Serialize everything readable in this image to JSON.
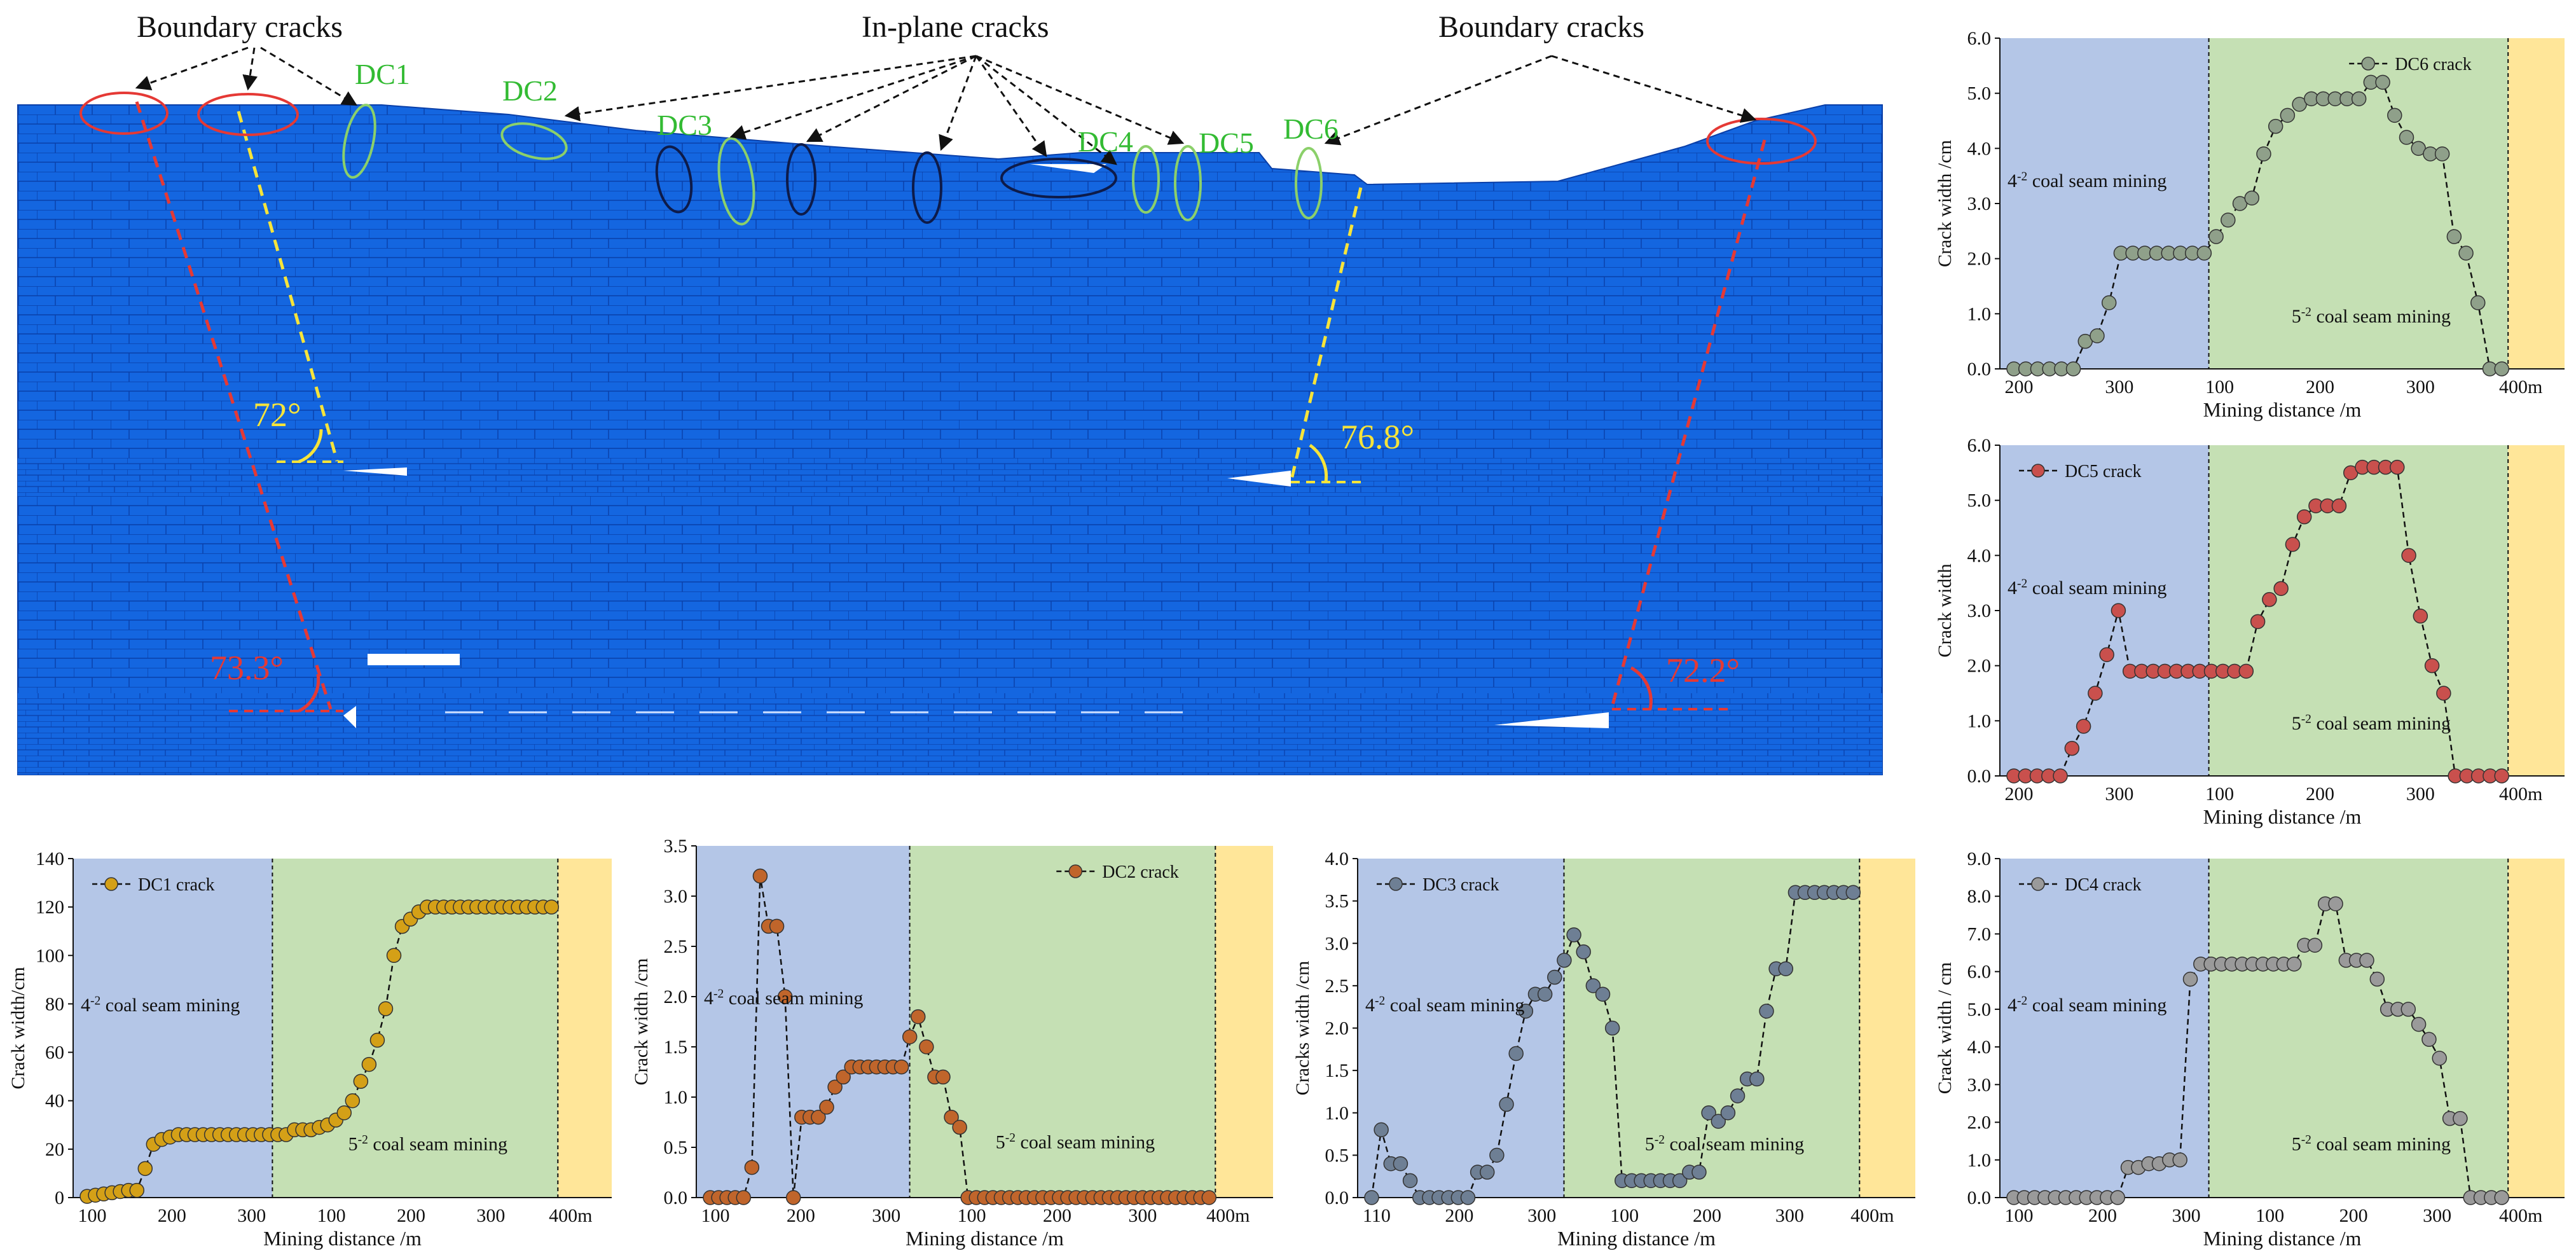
{
  "model": {
    "labels": {
      "boundary_left": "Boundary cracks",
      "boundary_right": "Boundary cracks",
      "inplane": "In-plane cracks",
      "dc1": "DC1",
      "dc2": "DC2",
      "dc3": "DC3",
      "dc4": "DC4",
      "dc5": "DC5",
      "dc6": "DC6",
      "angle_upper_left": "72°",
      "angle_upper_right": "76.8°",
      "angle_lower_left": "73.3°",
      "angle_lower_right": "72.2°"
    },
    "colors": {
      "rock": "#1565d8",
      "grid": "#0a3f9e",
      "green": "#33aa33",
      "red": "#e53935",
      "yellow": "#f6e43a",
      "navy": "#0d1b4a"
    }
  },
  "chart_data": [
    {
      "id": "dc1",
      "type": "line",
      "legend": "DC1 crack",
      "ylabel": "Crack width/cm",
      "xlabel": "Mining  distance  /m",
      "ylim": [
        0,
        140
      ],
      "yticks": [
        "0",
        "20",
        "40",
        "60",
        "80",
        "100",
        "120",
        "140"
      ],
      "xticks": [
        "100",
        "200",
        "300",
        "100",
        "200",
        "300",
        "400m"
      ],
      "regions": {
        "first": "4-2 coal seam mining",
        "second": "5-2 coal seam mining"
      },
      "marker_color": "#d4a017",
      "values": [
        0.5,
        1,
        1.5,
        2,
        2.5,
        3,
        3,
        12,
        22,
        24,
        25,
        26,
        26,
        26,
        26,
        26,
        26,
        26,
        26,
        26,
        26,
        26,
        26,
        26,
        26,
        28,
        28,
        28,
        29,
        30,
        32,
        35,
        40,
        48,
        55,
        65,
        78,
        100,
        112,
        115,
        118,
        120,
        120,
        120,
        120,
        120,
        120,
        120,
        120,
        120,
        120,
        120,
        120,
        120,
        120,
        120,
        120
      ]
    },
    {
      "id": "dc2",
      "type": "line",
      "legend": "DC2 crack",
      "ylabel": "Crack width /cm",
      "xlabel": "Mining  distance  /m",
      "ylim": [
        0,
        3.5
      ],
      "yticks": [
        "0.0",
        "0.5",
        "1.0",
        "1.5",
        "2.0",
        "2.5",
        "3.0",
        "3.5"
      ],
      "xticks": [
        "100",
        "200",
        "300",
        "100",
        "200",
        "300",
        "400m"
      ],
      "regions": {
        "first": "4-2 coal seam mining",
        "second": "5-2 coal seam mining"
      },
      "marker_color": "#c0652b",
      "values": [
        0,
        0,
        0,
        0,
        0,
        0.3,
        3.2,
        2.7,
        2.7,
        2,
        0,
        0.8,
        0.8,
        0.8,
        0.9,
        1.1,
        1.2,
        1.3,
        1.3,
        1.3,
        1.3,
        1.3,
        1.3,
        1.3,
        1.6,
        1.8,
        1.5,
        1.2,
        1.2,
        0.8,
        0.7,
        0,
        0,
        0,
        0,
        0,
        0,
        0,
        0,
        0,
        0,
        0,
        0,
        0,
        0,
        0,
        0,
        0,
        0,
        0,
        0,
        0,
        0,
        0,
        0,
        0,
        0,
        0,
        0,
        0,
        0
      ]
    },
    {
      "id": "dc3",
      "type": "line",
      "legend": "DC3 crack",
      "ylabel": "Cracks width /cm",
      "xlabel": "Mining  distance  /m",
      "ylim": [
        0,
        4.0
      ],
      "yticks": [
        "0.0",
        "0.5",
        "1.0",
        "1.5",
        "2.0",
        "2.5",
        "3.0",
        "3.5",
        "4.0"
      ],
      "xticks": [
        "110",
        "200",
        "300",
        "100",
        "200",
        "300",
        "400m"
      ],
      "regions": {
        "first": "4-2 coal seam mining",
        "second": "5-2 coal seam mining"
      },
      "marker_color": "#6e7f94",
      "values": [
        0,
        0.8,
        0.4,
        0.4,
        0.2,
        0,
        0,
        0,
        0,
        0,
        0,
        0.3,
        0.3,
        0.5,
        1.1,
        1.7,
        2.2,
        2.4,
        2.4,
        2.6,
        2.8,
        3.1,
        2.9,
        2.5,
        2.4,
        2,
        0.2,
        0.2,
        0.2,
        0.2,
        0.2,
        0.2,
        0.2,
        0.3,
        0.3,
        1,
        0.9,
        1,
        1.2,
        1.4,
        1.4,
        2.2,
        2.7,
        2.7,
        3.6,
        3.6,
        3.6,
        3.6,
        3.6,
        3.6,
        3.6
      ]
    },
    {
      "id": "dc4",
      "type": "line",
      "legend": "DC4 crack",
      "ylabel": "Crack width / cm",
      "xlabel": "Mining  distance  /m",
      "ylim": [
        0,
        9.0
      ],
      "yticks": [
        "0.0",
        "1.0",
        "2.0",
        "3.0",
        "4.0",
        "5.0",
        "6.0",
        "7.0",
        "8.0",
        "9.0"
      ],
      "xticks": [
        "100",
        "200",
        "300",
        "100",
        "200",
        "300",
        "400m"
      ],
      "regions": {
        "first": "4-2 coal seam mining",
        "second": "5-2 coal seam mining"
      },
      "marker_color": "#9a9a9a",
      "values": [
        0,
        0,
        0,
        0,
        0,
        0,
        0,
        0,
        0,
        0,
        0,
        0.8,
        0.8,
        0.9,
        0.9,
        1,
        1,
        5.8,
        6.2,
        6.2,
        6.2,
        6.2,
        6.2,
        6.2,
        6.2,
        6.2,
        6.2,
        6.2,
        6.7,
        6.7,
        7.8,
        7.8,
        6.3,
        6.3,
        6.3,
        5.8,
        5,
        5,
        5,
        4.6,
        4.2,
        3.7,
        2.1,
        2.1,
        0,
        0,
        0,
        0
      ]
    },
    {
      "id": "dc5",
      "type": "line",
      "legend": "DC5 crack",
      "ylabel": "Crack width",
      "xlabel": "Mining  distance  /m",
      "ylim": [
        0,
        6.0
      ],
      "yticks": [
        "0.0",
        "1.0",
        "2.0",
        "3.0",
        "4.0",
        "5.0",
        "6.0"
      ],
      "xticks": [
        "200",
        "300",
        "100",
        "200",
        "300",
        "400m"
      ],
      "regions": {
        "first": "4-2 coal seam mining",
        "second": "5-2 coal seam mining"
      },
      "marker_color": "#c9504d",
      "values": [
        0,
        0,
        0,
        0,
        0,
        0.5,
        0.9,
        1.5,
        2.2,
        3,
        1.9,
        1.9,
        1.9,
        1.9,
        1.9,
        1.9,
        1.9,
        1.9,
        1.9,
        1.9,
        1.9,
        2.8,
        3.2,
        3.4,
        4.2,
        4.7,
        4.9,
        4.9,
        4.9,
        5.5,
        5.6,
        5.6,
        5.6,
        5.6,
        4,
        2.9,
        2,
        1.5,
        0,
        0,
        0,
        0,
        0
      ]
    },
    {
      "id": "dc6",
      "type": "line",
      "legend": "DC6 crack",
      "ylabel": "Crack width /cm",
      "xlabel": "Mining  distance  /m",
      "ylim": [
        0,
        6.0
      ],
      "yticks": [
        "0.0",
        "1.0",
        "2.0",
        "3.0",
        "4.0",
        "5.0",
        "6.0"
      ],
      "xticks": [
        "200",
        "300",
        "100",
        "200",
        "300",
        "400m"
      ],
      "regions": {
        "first": "4-2 coal seam mining",
        "second": "5-2 coal seam mining"
      },
      "marker_color": "#8fa08a",
      "values": [
        0,
        0,
        0,
        0,
        0,
        0,
        0.5,
        0.6,
        1.2,
        2.1,
        2.1,
        2.1,
        2.1,
        2.1,
        2.1,
        2.1,
        2.1,
        2.4,
        2.7,
        3,
        3.1,
        3.9,
        4.4,
        4.6,
        4.8,
        4.9,
        4.9,
        4.9,
        4.9,
        4.9,
        5.2,
        5.2,
        4.6,
        4.2,
        4,
        3.9,
        3.9,
        2.4,
        2.1,
        1.2,
        0,
        0
      ]
    }
  ]
}
